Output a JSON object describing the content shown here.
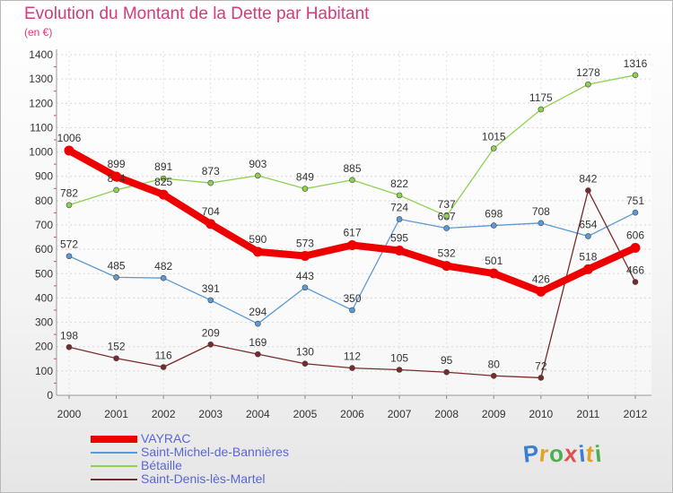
{
  "header": {
    "title": "Evolution du Montant de la Dette par Habitant",
    "subtitle": "(en €)"
  },
  "logo": {
    "text": "Proxiti",
    "colors": [
      "#3a7fd4",
      "#e8a020",
      "#4caf50",
      "#e05050",
      "#3a7fd4",
      "#e8a020",
      "#4caf50"
    ]
  },
  "chart_data": {
    "type": "line",
    "categories": [
      "2000",
      "2001",
      "2002",
      "2003",
      "2004",
      "2005",
      "2006",
      "2007",
      "2008",
      "2009",
      "2010",
      "2011",
      "2012"
    ],
    "ylim": [
      0,
      1400
    ],
    "yticks": [
      0,
      100,
      200,
      300,
      400,
      500,
      600,
      700,
      800,
      900,
      1000,
      1100,
      1200,
      1300,
      1400
    ],
    "grid": true,
    "legend_position": "bottom-left",
    "series": [
      {
        "name": "VAYRAC",
        "color": "#ee0000",
        "width": 8,
        "values": [
          1006,
          899,
          825,
          704,
          590,
          573,
          617,
          595,
          532,
          501,
          426,
          518,
          606
        ]
      },
      {
        "name": "Saint-Michel-de-Bannières",
        "color": "#5b9bd5",
        "width": 1.3,
        "values": [
          572,
          485,
          482,
          391,
          294,
          443,
          350,
          724,
          687,
          698,
          708,
          654,
          751
        ]
      },
      {
        "name": "Bétaille",
        "color": "#8fd14f",
        "width": 1.3,
        "values": [
          782,
          844,
          891,
          873,
          903,
          849,
          885,
          822,
          737,
          1015,
          1175,
          1278,
          1316
        ]
      },
      {
        "name": "Saint-Denis-lès-Martel",
        "color": "#7a2a2a",
        "width": 1.3,
        "values": [
          198,
          152,
          116,
          209,
          169,
          130,
          112,
          105,
          95,
          80,
          72,
          842,
          466
        ]
      }
    ]
  }
}
